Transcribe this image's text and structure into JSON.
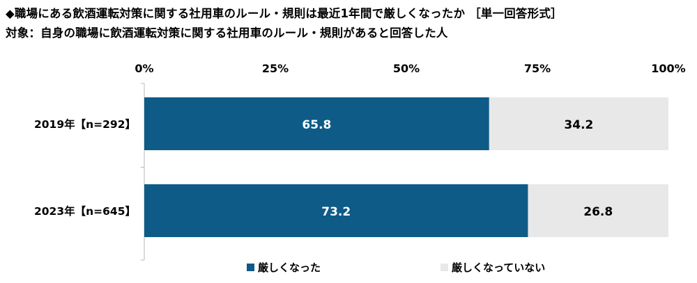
{
  "title_line1": "◆職場にある飲酒運転対策に関する社用車のルール・規則は最近1年間で厳しくなったか ［単一回答形式］",
  "title_line2": "対象：自身の職場に飲酒運転対策に関する社用車のルール・規則があると回答した人",
  "colors": {
    "series1": "#0e5b88",
    "series2": "#e8e8e8",
    "axis": "#b7b7b7",
    "label_on_dark": "#ffffff",
    "label_on_light": "#000000"
  },
  "chart_data": {
    "type": "bar",
    "orientation": "horizontal",
    "stacked": true,
    "categories": [
      "2019年【n=292】",
      "2023年【n=645】"
    ],
    "series": [
      {
        "name": "厳しくなった",
        "values": [
          65.8,
          73.2
        ]
      },
      {
        "name": "厳しくなっていない",
        "values": [
          34.2,
          26.8
        ]
      }
    ],
    "x_ticks": [
      "0%",
      "25%",
      "50%",
      "75%",
      "100%"
    ],
    "xlim": [
      0,
      100
    ],
    "grid": false,
    "legend_position": "bottom"
  }
}
